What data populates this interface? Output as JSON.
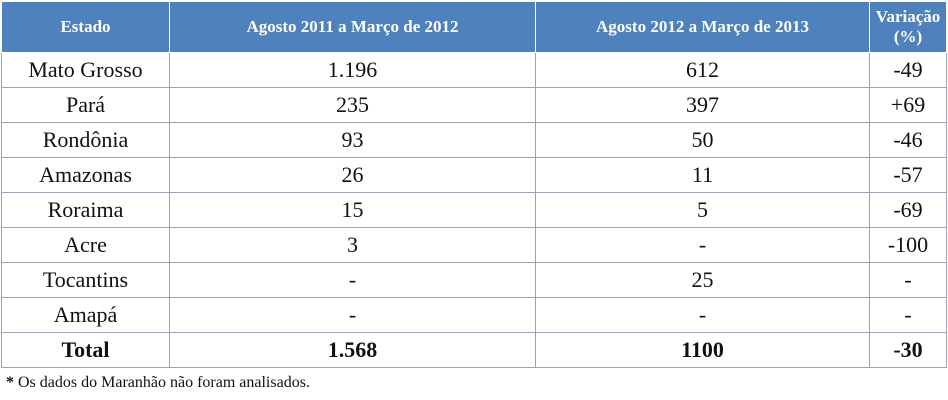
{
  "table": {
    "headers": [
      "Estado",
      "Agosto 2011 a Março de 2012",
      "Agosto 2012 a Março de 2013",
      "Variação (%)"
    ],
    "rows": [
      [
        "Mato Grosso",
        "1.196",
        "612",
        "-49"
      ],
      [
        "Pará",
        "235",
        "397",
        "+69"
      ],
      [
        "Rondônia",
        "93",
        "50",
        "-46"
      ],
      [
        "Amazonas",
        "26",
        "11",
        "-57"
      ],
      [
        "Roraima",
        "15",
        "5",
        "-69"
      ],
      [
        "Acre",
        "3",
        "-",
        "-100"
      ],
      [
        "Tocantins",
        "-",
        "25",
        "-"
      ],
      [
        "Amapá",
        "-",
        "-",
        "-"
      ]
    ],
    "total": [
      "Total",
      "1.568",
      "1100",
      "-30"
    ]
  },
  "footnote": {
    "marker": "*",
    "text": " Os dados do Maranhão não foram analisados."
  },
  "colors": {
    "header_bg": "#4f81bd",
    "header_text": "#ffffff",
    "border": "#9aa4b3"
  }
}
